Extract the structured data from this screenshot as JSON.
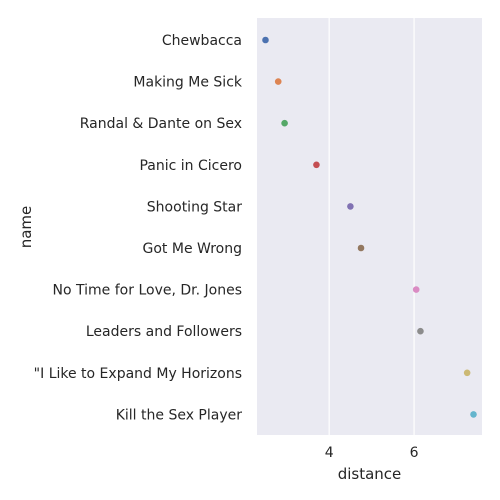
{
  "chart_data": {
    "type": "scatter",
    "xlabel": "distance",
    "ylabel": "name",
    "grid": true,
    "xlim": [
      2.3,
      7.6
    ],
    "xticks": [
      4,
      6
    ],
    "xtick_labels": [
      "4",
      "6"
    ],
    "categories": [
      "Chewbacca",
      "Making Me Sick",
      "Randal & Dante on Sex",
      "Panic in Cicero",
      "Shooting Star",
      "Got Me Wrong",
      "No Time for Love, Dr. Jones",
      "Leaders and Followers",
      "\"I Like to Expand My Horizons",
      "Kill the Sex Player"
    ],
    "values": [
      2.5,
      2.8,
      2.95,
      3.7,
      4.5,
      4.75,
      6.05,
      6.15,
      7.25,
      7.4
    ],
    "colors": [
      "#4c72b0",
      "#dd8452",
      "#55a868",
      "#c44e52",
      "#8172b3",
      "#937860",
      "#da8bc3",
      "#8c8c8c",
      "#ccb974",
      "#64b5cd"
    ],
    "background": "#eaeaf2",
    "grid_color": "#ffffff"
  }
}
